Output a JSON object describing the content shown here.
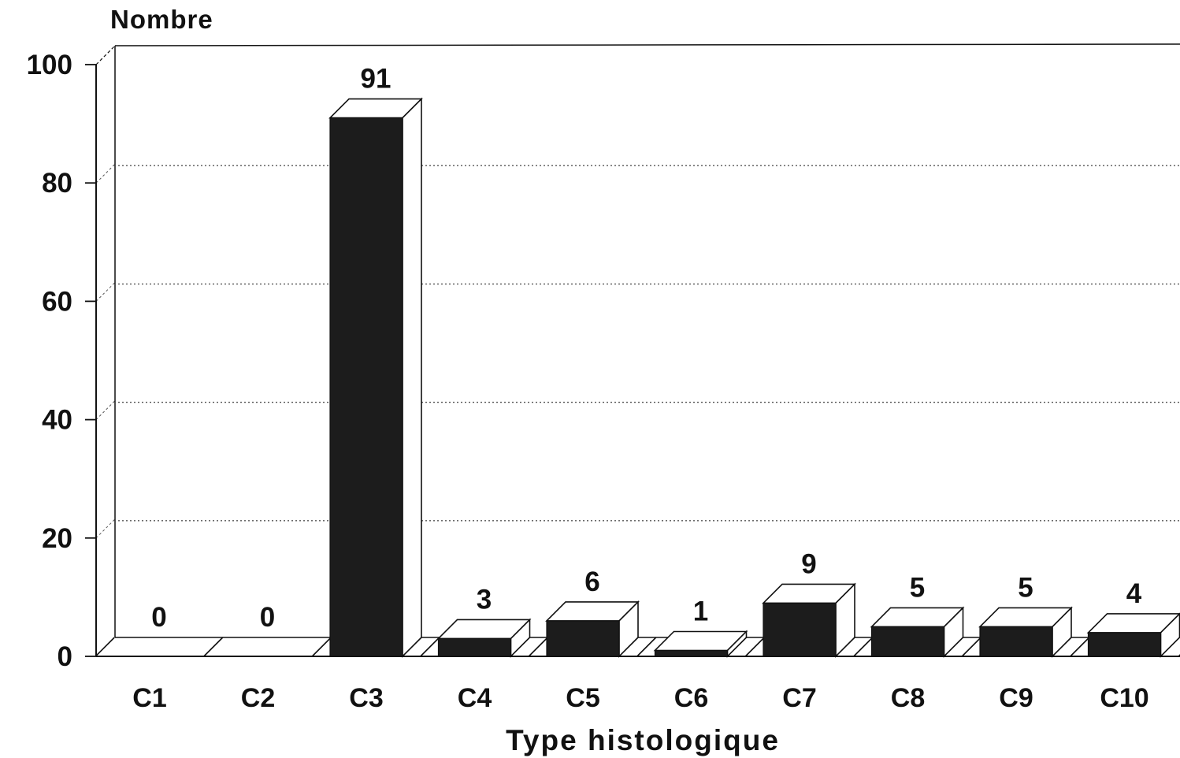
{
  "chart_data": {
    "type": "bar",
    "ylabel": "Nombre",
    "xlabel": "Type histologique",
    "categories": [
      "C1",
      "C2",
      "C3",
      "C4",
      "C5",
      "C6",
      "C7",
      "C8",
      "C9",
      "C10"
    ],
    "values": [
      0,
      0,
      91,
      3,
      6,
      1,
      9,
      5,
      5,
      4
    ],
    "value_labels": [
      "0",
      "0",
      "91",
      "3",
      "6",
      "1",
      "9",
      "5",
      "5",
      "4"
    ],
    "ylim": [
      0,
      100
    ],
    "yticks": [
      "0",
      "20",
      "40",
      "60",
      "80",
      "100"
    ],
    "grid": "dotted horizontal",
    "style": "3d",
    "colors": {
      "bar_front": "#1c1c1c",
      "bar_side": "#ffffff",
      "outline": "#111111",
      "grid": "#555555"
    }
  }
}
